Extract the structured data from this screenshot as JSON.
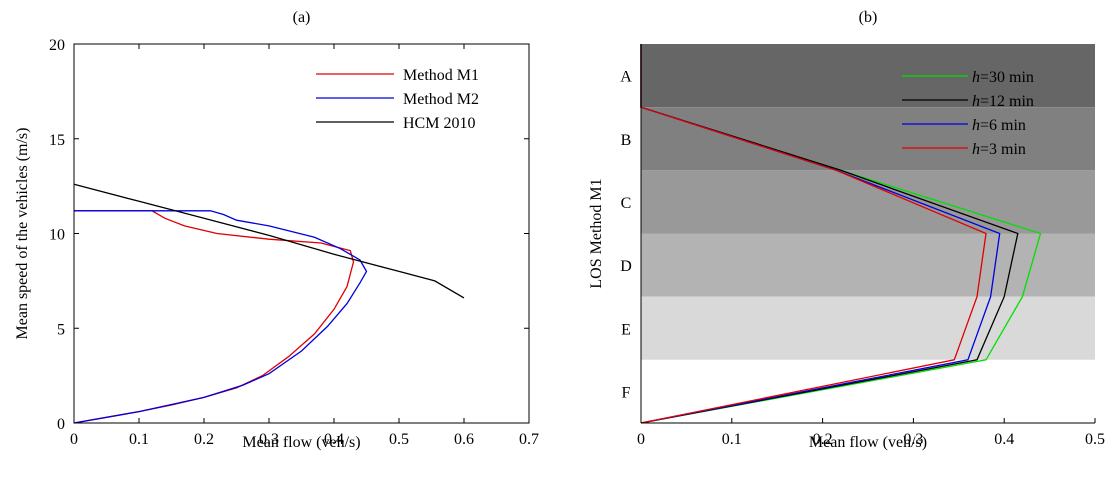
{
  "chart_data": [
    {
      "panel_label": "(a)",
      "type": "line",
      "xlabel": "Mean flow (veh/s)",
      "ylabel": "Mean speed of the vehicles (m/s)",
      "xlim": [
        0,
        0.7
      ],
      "ylim": [
        0,
        20
      ],
      "xticks": [
        "0",
        "0.1",
        "0.2",
        "0.3",
        "0.4",
        "0.5",
        "0.6",
        "0.7"
      ],
      "yticks": [
        "0",
        "5",
        "10",
        "15",
        "20"
      ],
      "grid": false,
      "legend_position": "top-right",
      "series": [
        {
          "name": "Method M1",
          "color": "#e00000",
          "points": [
            [
              0,
              0
            ],
            [
              0.05,
              0.3
            ],
            [
              0.1,
              0.6
            ],
            [
              0.15,
              0.95
            ],
            [
              0.2,
              1.35
            ],
            [
              0.25,
              1.85
            ],
            [
              0.29,
              2.5
            ],
            [
              0.33,
              3.5
            ],
            [
              0.37,
              4.7
            ],
            [
              0.4,
              6.0
            ],
            [
              0.42,
              7.2
            ],
            [
              0.43,
              8.5
            ],
            [
              0.425,
              9.1
            ],
            [
              0.38,
              9.5
            ],
            [
              0.3,
              9.7
            ],
            [
              0.22,
              10.0
            ],
            [
              0.17,
              10.4
            ],
            [
              0.14,
              10.8
            ],
            [
              0.12,
              11.2
            ],
            [
              0,
              11.2
            ]
          ]
        },
        {
          "name": "Method M2",
          "color": "#0000e0",
          "points": [
            [
              0,
              0
            ],
            [
              0.1,
              0.6
            ],
            [
              0.2,
              1.35
            ],
            [
              0.26,
              2.0
            ],
            [
              0.3,
              2.6
            ],
            [
              0.35,
              3.8
            ],
            [
              0.39,
              5.1
            ],
            [
              0.42,
              6.3
            ],
            [
              0.44,
              7.4
            ],
            [
              0.45,
              8.0
            ],
            [
              0.44,
              8.6
            ],
            [
              0.41,
              9.2
            ],
            [
              0.37,
              9.8
            ],
            [
              0.3,
              10.4
            ],
            [
              0.25,
              10.7
            ],
            [
              0.23,
              11.0
            ],
            [
              0.21,
              11.2
            ],
            [
              0,
              11.2
            ]
          ]
        },
        {
          "name": "HCM 2010",
          "color": "#000000",
          "points": [
            [
              0,
              12.6
            ],
            [
              0.1,
              11.7
            ],
            [
              0.2,
              10.8
            ],
            [
              0.3,
              9.9
            ],
            [
              0.4,
              8.9
            ],
            [
              0.5,
              8.0
            ],
            [
              0.555,
              7.5
            ],
            [
              0.6,
              6.6
            ]
          ]
        }
      ]
    },
    {
      "panel_label": "(b)",
      "type": "line",
      "xlabel": "Mean flow (veh/s)",
      "ylabel": "LOS Method M1",
      "xlim": [
        0,
        0.5
      ],
      "xticks": [
        "0",
        "0.1",
        "0.2",
        "0.3",
        "0.4",
        "0.5"
      ],
      "categories": [
        "A",
        "B",
        "C",
        "D",
        "E",
        "F"
      ],
      "los_band_colors": [
        "#666666",
        "#808080",
        "#999999",
        "#b3b3b3",
        "#d9d9d9",
        "#ffffff"
      ],
      "grid": false,
      "legend_position": "top-right",
      "series": [
        {
          "name": "h=30 min",
          "name_italic": "h",
          "name_rest": "=30 min",
          "color": "#00e000",
          "points": [
            [
              0,
              6
            ],
            [
              0,
              5
            ],
            [
              0.22,
              4
            ],
            [
              0.44,
              3
            ],
            [
              0.42,
              2
            ],
            [
              0.38,
              1
            ],
            [
              0,
              0
            ]
          ]
        },
        {
          "name": "h=12 min",
          "name_italic": "h",
          "name_rest": "=12 min",
          "color": "#000000",
          "points": [
            [
              0,
              6
            ],
            [
              0,
              5
            ],
            [
              0.22,
              4
            ],
            [
              0.415,
              3
            ],
            [
              0.4,
              2
            ],
            [
              0.37,
              1
            ],
            [
              0,
              0
            ]
          ]
        },
        {
          "name": "h=6 min",
          "name_italic": "h",
          "name_rest": "=6 min",
          "color": "#0000e0",
          "points": [
            [
              0,
              6
            ],
            [
              0,
              5
            ],
            [
              0.215,
              4
            ],
            [
              0.395,
              3
            ],
            [
              0.385,
              2
            ],
            [
              0.36,
              1
            ],
            [
              0,
              0
            ]
          ]
        },
        {
          "name": "h=3 min",
          "name_italic": "h",
          "name_rest": "=3 min",
          "color": "#e00000",
          "points": [
            [
              0,
              6
            ],
            [
              0,
              5
            ],
            [
              0.215,
              4
            ],
            [
              0.38,
              3
            ],
            [
              0.37,
              2
            ],
            [
              0.345,
              1
            ],
            [
              0,
              0
            ]
          ]
        }
      ]
    }
  ]
}
